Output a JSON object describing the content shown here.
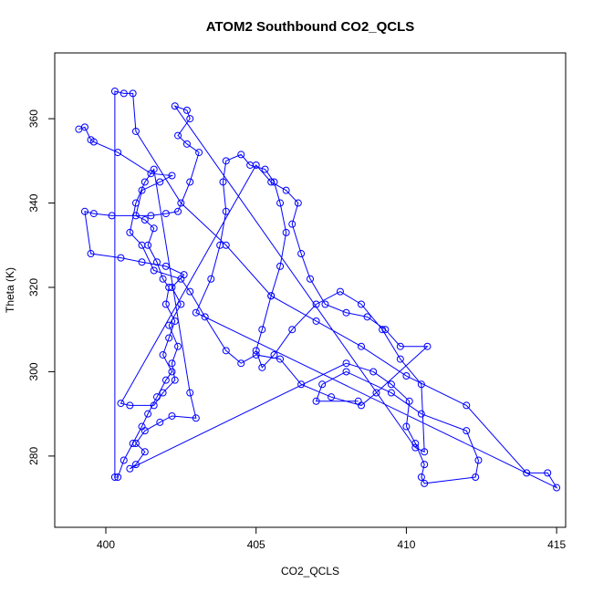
{
  "chart_data": {
    "type": "line",
    "markers": true,
    "title": "ATOM2 Southbound CO2_QCLS",
    "x_label": "CO2_QCLS",
    "y_label": "Theta (K)",
    "xlim": [
      398.3,
      415.3
    ],
    "ylim": [
      263.1,
      375.6
    ],
    "xticks": [
      400,
      405,
      410,
      415
    ],
    "yticks": [
      280,
      300,
      320,
      340,
      360
    ],
    "series": [
      {
        "color": "#0000ff",
        "x": [
          399.1,
          399.3,
          399.5,
          399.6,
          400.4,
          401.5,
          402.2,
          401.8,
          401.2,
          401.0,
          401.3,
          401.6,
          401.4,
          401.7,
          401.9,
          402.1,
          402.0,
          402.3,
          402.1,
          401.9,
          402.2,
          402.0,
          401.7,
          401.4,
          401.2,
          400.9,
          400.6,
          400.4,
          400.3,
          400.3,
          400.6,
          400.9,
          401.0,
          402.5,
          404.0,
          405.5,
          407.0,
          408.5,
          410.0,
          412.0,
          414.0,
          414.7,
          415.0,
          403.0,
          403.5,
          403.8,
          404.0,
          403.9,
          404.0,
          404.5,
          404.8,
          405.3,
          405.6,
          405.8,
          406.0,
          405.8,
          405.5,
          405.2,
          405.0,
          405.2,
          405.6,
          406.2,
          407.0,
          407.8,
          408.5,
          409.2,
          409.8,
          410.5,
          410.6,
          410.3,
          402.3,
          402.7,
          402.8,
          402.4,
          402.7,
          403.1,
          402.8,
          402.4,
          402.0,
          401.5,
          400.2,
          399.6,
          399.3,
          399.5,
          400.5,
          401.2,
          402.0,
          402.6,
          402.2,
          402.5,
          402.1,
          402.4,
          402.2,
          402.3,
          401.9,
          401.6,
          400.8,
          400.5,
          405.0,
          405.5,
          406.0,
          406.4,
          406.2,
          406.5,
          406.8,
          407.3,
          408.0,
          408.7,
          409.3,
          409.8,
          410.7,
          409.0,
          408.5,
          407.5,
          406.5,
          405.8,
          405.0,
          404.5,
          404.0,
          403.3,
          402.8,
          402.5,
          401.6,
          401.2,
          400.8,
          401.0,
          401.3,
          401.6,
          402.8,
          403.0,
          402.2,
          401.8,
          401.3,
          401.0,
          401.3,
          401.0,
          400.8,
          408.0,
          408.9,
          409.5,
          410.1,
          410.0,
          410.3,
          410.6,
          410.5,
          410.6,
          412.3,
          412.4,
          412.0,
          410.5,
          409.5,
          408.0,
          407.2,
          407.0,
          408.4
        ],
        "values": [
          357.5,
          358,
          355,
          354.5,
          352,
          347,
          346.5,
          345,
          343,
          337,
          336,
          334,
          330,
          326,
          322,
          320,
          316,
          312,
          308,
          304,
          300,
          298,
          294,
          290,
          287,
          283,
          279,
          275,
          275,
          366.5,
          366,
          366,
          357,
          340,
          330,
          318,
          312,
          306,
          299,
          292,
          276,
          276,
          272.5,
          314,
          322,
          330,
          338,
          345,
          350,
          351.5,
          349,
          348,
          345,
          340,
          333,
          325,
          318,
          310,
          305,
          301,
          304,
          310,
          316,
          319,
          316,
          310,
          303,
          297,
          281,
          282,
          363,
          362,
          360,
          356,
          354,
          352,
          345,
          338,
          337.5,
          337,
          337,
          337.5,
          338,
          328,
          327,
          326,
          325,
          323,
          320,
          316,
          311,
          306,
          302,
          298,
          295,
          292,
          292,
          292.5,
          349,
          345,
          343,
          340,
          335,
          328,
          322,
          316,
          314,
          313,
          310,
          306,
          306,
          295,
          292,
          294,
          297,
          303,
          304,
          302,
          305,
          313,
          319,
          322,
          324,
          330,
          333,
          340,
          345,
          348,
          295,
          289,
          289.5,
          288,
          286,
          283,
          281,
          278,
          277,
          302,
          300,
          297,
          293,
          287,
          283,
          278,
          275,
          273.5,
          275,
          279,
          286,
          290,
          295,
          300,
          297,
          293,
          293
        ]
      }
    ]
  }
}
